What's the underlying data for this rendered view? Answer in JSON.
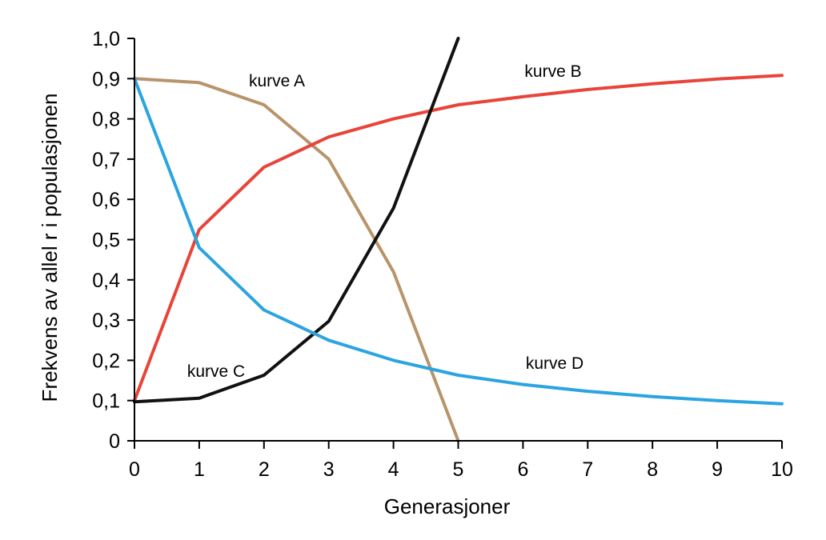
{
  "chart_data": {
    "type": "line",
    "title": "",
    "xlabel": "Generasjoner",
    "ylabel": "Frekvens av allel r i populasjonen",
    "xlim": [
      0,
      10
    ],
    "ylim": [
      0,
      1.0
    ],
    "x_ticks": [
      "0",
      "1",
      "2",
      "3",
      "4",
      "5",
      "6",
      "7",
      "8",
      "9",
      "10"
    ],
    "y_ticks": [
      "0",
      "0,1",
      "0,2",
      "0,3",
      "0,4",
      "0,5",
      "0,6",
      "0,7",
      "0,8",
      "0,9",
      "1,0"
    ],
    "grid": false,
    "series": [
      {
        "name": "kurve A",
        "color": "#b8946a",
        "x": [
          0,
          1,
          2,
          3,
          4,
          5
        ],
        "y": [
          0.9,
          0.89,
          0.835,
          0.7,
          0.42,
          0.0
        ]
      },
      {
        "name": "kurve B",
        "color": "#e8443a",
        "x": [
          0,
          1,
          2,
          3,
          4,
          5,
          6,
          7,
          8,
          9,
          10
        ],
        "y": [
          0.1,
          0.525,
          0.68,
          0.755,
          0.8,
          0.835,
          0.855,
          0.873,
          0.887,
          0.899,
          0.908
        ]
      },
      {
        "name": "kurve C",
        "color": "#111111",
        "x": [
          0,
          1,
          2,
          3,
          4,
          5
        ],
        "y": [
          0.097,
          0.106,
          0.163,
          0.297,
          0.578,
          1.0
        ]
      },
      {
        "name": "kurve D",
        "color": "#2ba4e0",
        "x": [
          0,
          1,
          2,
          3,
          4,
          5,
          6,
          7,
          8,
          9,
          10
        ],
        "y": [
          0.9,
          0.48,
          0.325,
          0.25,
          0.2,
          0.163,
          0.14,
          0.123,
          0.11,
          0.1,
          0.092
        ]
      }
    ]
  }
}
